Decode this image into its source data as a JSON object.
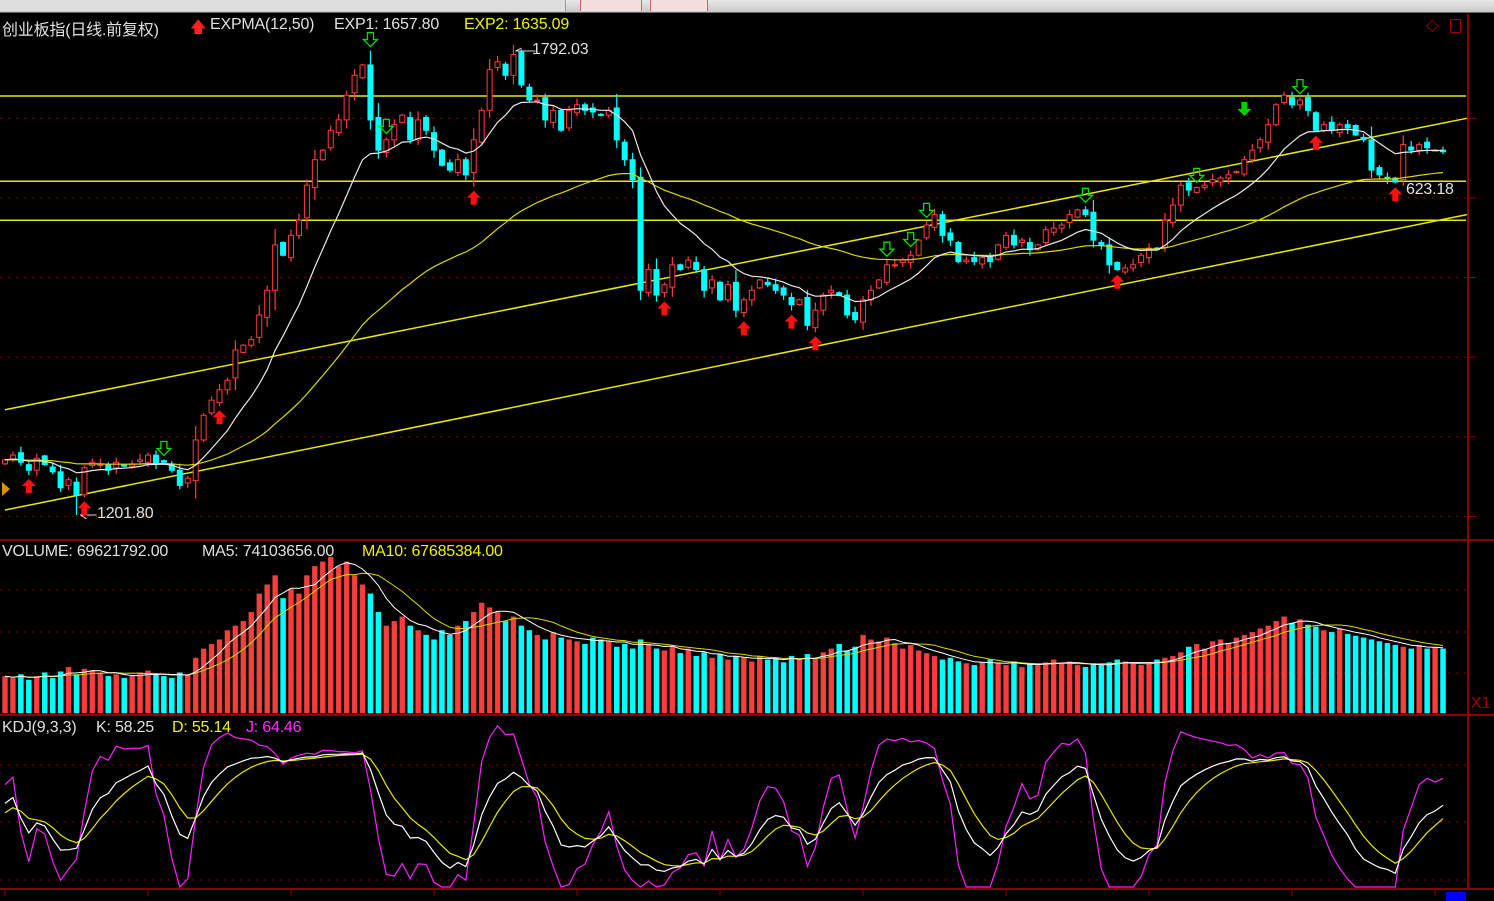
{
  "main": {
    "title": "创业板指(日线.前复权)",
    "indicator": "EXPMA(12,50)",
    "exp1_label": "EXP1: 1657.80",
    "exp2_label": "EXP2: 1635.09",
    "high_label": "1792.03",
    "low_label": "1201.80",
    "level_label": "623.18"
  },
  "volume": {
    "volume_label": "VOLUME: 69621792.00",
    "ma5_label": "MA5: 74103656.00",
    "ma10_label": "MA10: 67685384.00",
    "scale_label": "X1"
  },
  "kdj": {
    "title": "KDJ(9,3,3)",
    "k_label": "K: 58.25",
    "d_label": "D: 55.14",
    "j_label": "J: 64.46"
  },
  "colors": {
    "up": "#ff3b3b",
    "down": "#00ffff",
    "exp1": "#e8e8e8",
    "exp2": "#d8d800",
    "trendline": "#e8e800",
    "k": "#ffffff",
    "d": "#e8e800",
    "j": "#ff20ff",
    "grid": "#8b0000"
  },
  "chart_data": {
    "type": "candlestick",
    "ylim": [
      1180,
      1850
    ],
    "grid_levels": [
      1200,
      1300,
      1400,
      1500,
      1600,
      1700
    ],
    "close": [
      1271,
      1277,
      1268,
      1258,
      1273,
      1265,
      1256,
      1236,
      1246,
      1227,
      1261,
      1268,
      1265,
      1258,
      1268,
      1263,
      1266,
      1271,
      1277,
      1267,
      1268,
      1258,
      1239,
      1248,
      1296,
      1327,
      1346,
      1359,
      1371,
      1409,
      1415,
      1422,
      1453,
      1484,
      1541,
      1528,
      1553,
      1572,
      1616,
      1648,
      1660,
      1685,
      1698,
      1729,
      1754,
      1767,
      1698,
      1660,
      1673,
      1692,
      1704,
      1673,
      1698,
      1685,
      1660,
      1641,
      1635,
      1648,
      1629,
      1673,
      1710,
      1761,
      1771,
      1754,
      1780,
      1742,
      1723,
      1723,
      1698,
      1710,
      1685,
      1710,
      1717,
      1710,
      1708,
      1704,
      1710,
      1673,
      1648,
      1623,
      1484,
      1510,
      1478,
      1491,
      1516,
      1510,
      1522,
      1510,
      1484,
      1497,
      1472,
      1491,
      1459,
      1472,
      1484,
      1497,
      1491,
      1484,
      1478,
      1466,
      1472,
      1440,
      1459,
      1478,
      1484,
      1478,
      1453,
      1447,
      1472,
      1484,
      1497,
      1516,
      1516,
      1522,
      1528,
      1547,
      1566,
      1579,
      1553,
      1547,
      1520,
      1522,
      1520,
      1525,
      1520,
      1541,
      1553,
      1541,
      1547,
      1535,
      1541,
      1560,
      1562,
      1566,
      1579,
      1585,
      1579,
      1547,
      1541,
      1516,
      1510,
      1512,
      1516,
      1528,
      1537,
      1535,
      1572,
      1591,
      1616,
      1610,
      1613,
      1616,
      1623,
      1625,
      1629,
      1633,
      1648,
      1660,
      1673,
      1692,
      1717,
      1729,
      1717,
      1723,
      1710,
      1685,
      1692,
      1685,
      1692,
      1688,
      1679,
      1673,
      1635,
      1629,
      1625,
      1620,
      1667,
      1660,
      1667,
      1663,
      1660,
      1658
    ],
    "volume_millions": [
      40,
      38,
      42,
      36,
      40,
      44,
      38,
      45,
      50,
      42,
      48,
      46,
      44,
      40,
      42,
      38,
      40,
      44,
      46,
      42,
      40,
      38,
      44,
      42,
      60,
      70,
      75,
      80,
      90,
      95,
      100,
      110,
      130,
      140,
      150,
      125,
      135,
      130,
      150,
      160,
      165,
      170,
      160,
      165,
      150,
      140,
      130,
      110,
      95,
      100,
      105,
      95,
      90,
      85,
      80,
      90,
      85,
      95,
      100,
      110,
      120,
      115,
      110,
      100,
      105,
      95,
      90,
      85,
      80,
      88,
      82,
      80,
      78,
      75,
      82,
      80,
      78,
      72,
      75,
      70,
      80,
      75,
      70,
      68,
      72,
      65,
      70,
      62,
      66,
      60,
      64,
      58,
      62,
      60,
      56,
      62,
      58,
      60,
      55,
      62,
      58,
      64,
      60,
      66,
      70,
      75,
      68,
      72,
      85,
      80,
      78,
      82,
      76,
      70,
      74,
      68,
      65,
      62,
      58,
      60,
      56,
      54,
      52,
      55,
      58,
      54,
      52,
      56,
      50,
      54,
      52,
      55,
      58,
      54,
      56,
      52,
      50,
      54,
      52,
      55,
      58,
      56,
      54,
      52,
      55,
      58,
      60,
      62,
      66,
      72,
      75,
      70,
      78,
      80,
      76,
      82,
      85,
      88,
      92,
      95,
      100,
      105,
      98,
      102,
      96,
      94,
      90,
      88,
      92,
      86,
      84,
      82,
      80,
      78,
      76,
      74,
      72,
      70,
      74,
      70,
      72,
      70
    ],
    "volume_ylim": [
      0,
      180
    ],
    "high_marker": {
      "value": 1792.03,
      "bar": 64
    },
    "low_marker": {
      "value": 1201.8,
      "bar": 9
    },
    "horizontal_lines": [
      1728,
      1621,
      1572
    ],
    "trend_lines": [
      {
        "from_bar": 0,
        "from": 1334,
        "to_bar": 184,
        "to": 1700
      },
      {
        "from_bar": 0,
        "from": 1208,
        "to_bar": 184,
        "to": 1579
      }
    ],
    "buy_signals": [
      3,
      10,
      27,
      59,
      83,
      93,
      99,
      102,
      140,
      165,
      175
    ],
    "sell_signals": [
      20,
      46,
      48,
      111,
      114,
      116,
      136,
      150,
      163
    ],
    "strong_sell_signals": [
      156
    ]
  }
}
